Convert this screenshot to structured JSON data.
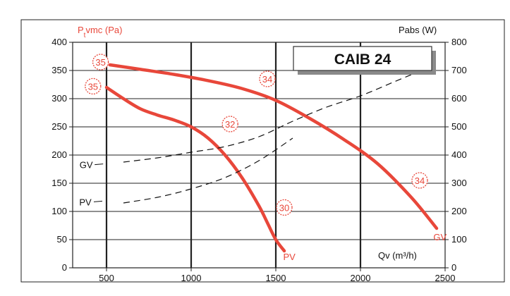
{
  "chart_data": {
    "type": "line",
    "title": "CAIB 24",
    "xlabel": "Qv (m³/h)",
    "ylabel": "Ptvmc (Pa)",
    "ylabel_prefix": "P",
    "ylabel_sub": "t",
    "ylabel_suffix": "vmc (Pa)",
    "y2label": "Pabs (W)",
    "xlim": [
      300,
      2500
    ],
    "ylim": [
      0,
      400
    ],
    "y2lim": [
      0,
      800
    ],
    "xticks": [
      500,
      1000,
      1500,
      2000,
      2500
    ],
    "yticks": [
      0,
      50,
      100,
      150,
      200,
      250,
      300,
      350,
      400
    ],
    "y2ticks": [
      0,
      100,
      200,
      300,
      400,
      500,
      600,
      700,
      800
    ],
    "grid": true,
    "colors": {
      "pressure": "#e8473a",
      "power": "#111111",
      "grid": "#222222",
      "marker": "#e8473a"
    },
    "series": [
      {
        "name": "GV",
        "kind": "pressure",
        "axis": "left",
        "x": [
          520,
          700,
          900,
          1100,
          1300,
          1500,
          1700,
          1900,
          2100,
          2300,
          2450
        ],
        "y": [
          360,
          352,
          343,
          332,
          318,
          297,
          265,
          228,
          185,
          125,
          70
        ]
      },
      {
        "name": "PV",
        "kind": "pressure",
        "axis": "left",
        "x": [
          500,
          600,
          700,
          800,
          900,
          1000,
          1100,
          1200,
          1300,
          1400,
          1450,
          1500,
          1550
        ],
        "y": [
          320,
          300,
          282,
          271,
          262,
          250,
          230,
          200,
          160,
          110,
          80,
          50,
          30
        ]
      },
      {
        "name": "GV",
        "kind": "power",
        "axis": "right",
        "x": [
          600,
          800,
          1000,
          1200,
          1400,
          1600,
          1800,
          2000,
          2200,
          2400
        ],
        "y": [
          375,
          390,
          410,
          430,
          465,
          520,
          570,
          610,
          660,
          710
        ]
      },
      {
        "name": "PV",
        "kind": "power",
        "axis": "right",
        "x": [
          600,
          800,
          1000,
          1200,
          1400,
          1600
        ],
        "y": [
          230,
          250,
          280,
          320,
          380,
          460
        ]
      }
    ],
    "markers": [
      {
        "label": "35",
        "x": 465,
        "y": 365
      },
      {
        "label": "35",
        "x": 420,
        "y": 322
      },
      {
        "label": "34",
        "x": 1450,
        "y": 335
      },
      {
        "label": "32",
        "x": 1230,
        "y": 255
      },
      {
        "label": "30",
        "x": 1550,
        "y": 107
      },
      {
        "label": "34",
        "x": 2350,
        "y": 155
      }
    ],
    "series_labels": [
      {
        "text": "GV",
        "x": 380,
        "y": 183,
        "color": "black"
      },
      {
        "text": "PV",
        "x": 375,
        "y": 117,
        "color": "black"
      },
      {
        "text": "PV",
        "x": 1580,
        "y": 20,
        "color": "red"
      },
      {
        "text": "GV",
        "x": 2470,
        "y": 55,
        "color": "red"
      }
    ]
  }
}
